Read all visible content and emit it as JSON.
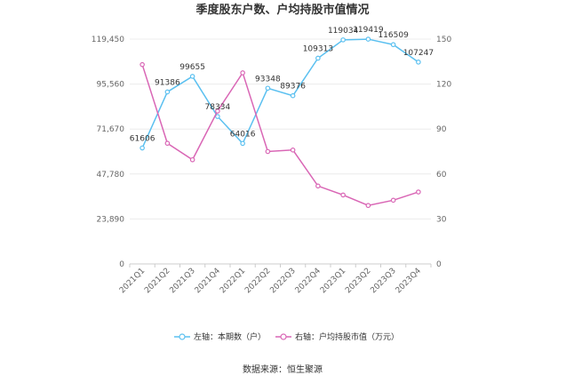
{
  "chart_data": {
    "type": "line",
    "title": "季度股东户数、户均持股市值情况",
    "categories": [
      "2021Q1",
      "2021Q2",
      "2021Q3",
      "2021Q4",
      "2022Q1",
      "2022Q2",
      "2022Q3",
      "2022Q4",
      "2023Q1",
      "2023Q2",
      "2023Q3",
      "2023Q4"
    ],
    "left_axis": {
      "ticks": [
        "0",
        "23,890",
        "47,780",
        "71,670",
        "95,560",
        "119,450"
      ],
      "ylim": [
        0,
        119450
      ]
    },
    "right_axis": {
      "ticks": [
        "0",
        "30",
        "60",
        "90",
        "120",
        "150"
      ],
      "ylim": [
        0,
        150
      ]
    },
    "series": [
      {
        "name": "左轴：本期数（户）",
        "axis": "left",
        "color": "#5bc0f0",
        "values": [
          61606,
          91386,
          99655,
          78334,
          64016,
          93348,
          89376,
          109313,
          119034,
          119419,
          116509,
          107247
        ],
        "labels": [
          "61606",
          "91386",
          "99655",
          "78334",
          "64016",
          "93348",
          "89376",
          "109313",
          "119034",
          "119419",
          "116509",
          "107247"
        ]
      },
      {
        "name": "右轴：户均持股市值（万元）",
        "axis": "right",
        "color": "#d966b5",
        "values": [
          133,
          80.5,
          69.5,
          102,
          127.5,
          75,
          76,
          52,
          46,
          39,
          42.5,
          48
        ]
      }
    ],
    "grid": true,
    "legend_position": "bottom"
  },
  "source_text": "数据来源：恒生聚源"
}
